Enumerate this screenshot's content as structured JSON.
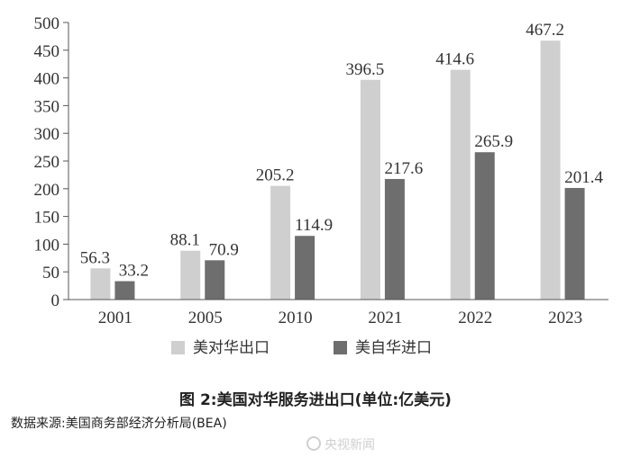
{
  "chart_data": {
    "type": "bar",
    "categories": [
      "2001",
      "2005",
      "2010",
      "2021",
      "2022",
      "2023"
    ],
    "series": [
      {
        "name": "美对华出口",
        "values": [
          56.3,
          88.1,
          205.2,
          396.5,
          414.6,
          467.2
        ],
        "color": "#cfcfcf"
      },
      {
        "name": "美自华进口",
        "values": [
          33.2,
          70.9,
          114.9,
          217.6,
          265.9,
          201.4
        ],
        "color": "#6e6e6e"
      }
    ],
    "ylim": [
      0,
      500
    ],
    "yticks": [
      0,
      50,
      100,
      150,
      200,
      250,
      300,
      350,
      400,
      450,
      500
    ],
    "grid": false,
    "legend_position": "bottom",
    "title": "图 2:美国对华服务进出口(单位:亿美元)"
  },
  "source": "数据来源:美国商务部经济分析局(BEA)",
  "watermark": "央视新闻"
}
